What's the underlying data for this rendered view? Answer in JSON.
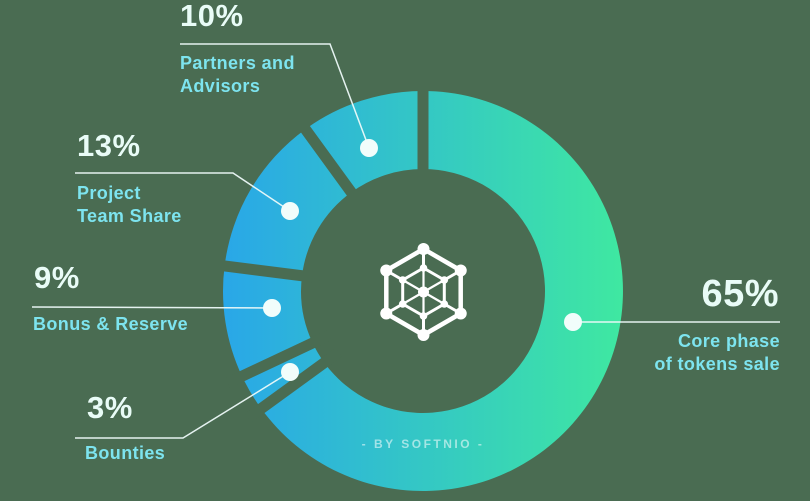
{
  "background": "#4a6c52",
  "watermark": "- BY SOFTNIO -",
  "icon": "hexagon-network-icon",
  "chart_data": {
    "type": "pie",
    "variant": "donut",
    "title": "",
    "direction": "clockwise",
    "start_angle_deg": 0,
    "inner_radius_ratio": 0.61,
    "gradient": {
      "left": "#29a7e8",
      "right": "#3fe8a1"
    },
    "separator_color": "#4a6c52",
    "line_color": "#edfaf9",
    "dot_color": "#f1fdfb",
    "segments": [
      {
        "label": "Core phase\nof tokens sale",
        "value": 65,
        "pct_label": "65%"
      },
      {
        "label": "Bounties",
        "value": 3,
        "pct_label": "3%"
      },
      {
        "label": "Bonus & Reserve",
        "value": 9,
        "pct_label": "9%"
      },
      {
        "label": "Project\nTeam Share",
        "value": 13,
        "pct_label": "13%"
      },
      {
        "label": "Partners and\nAdvisors",
        "value": 10,
        "pct_label": "10%"
      }
    ]
  }
}
